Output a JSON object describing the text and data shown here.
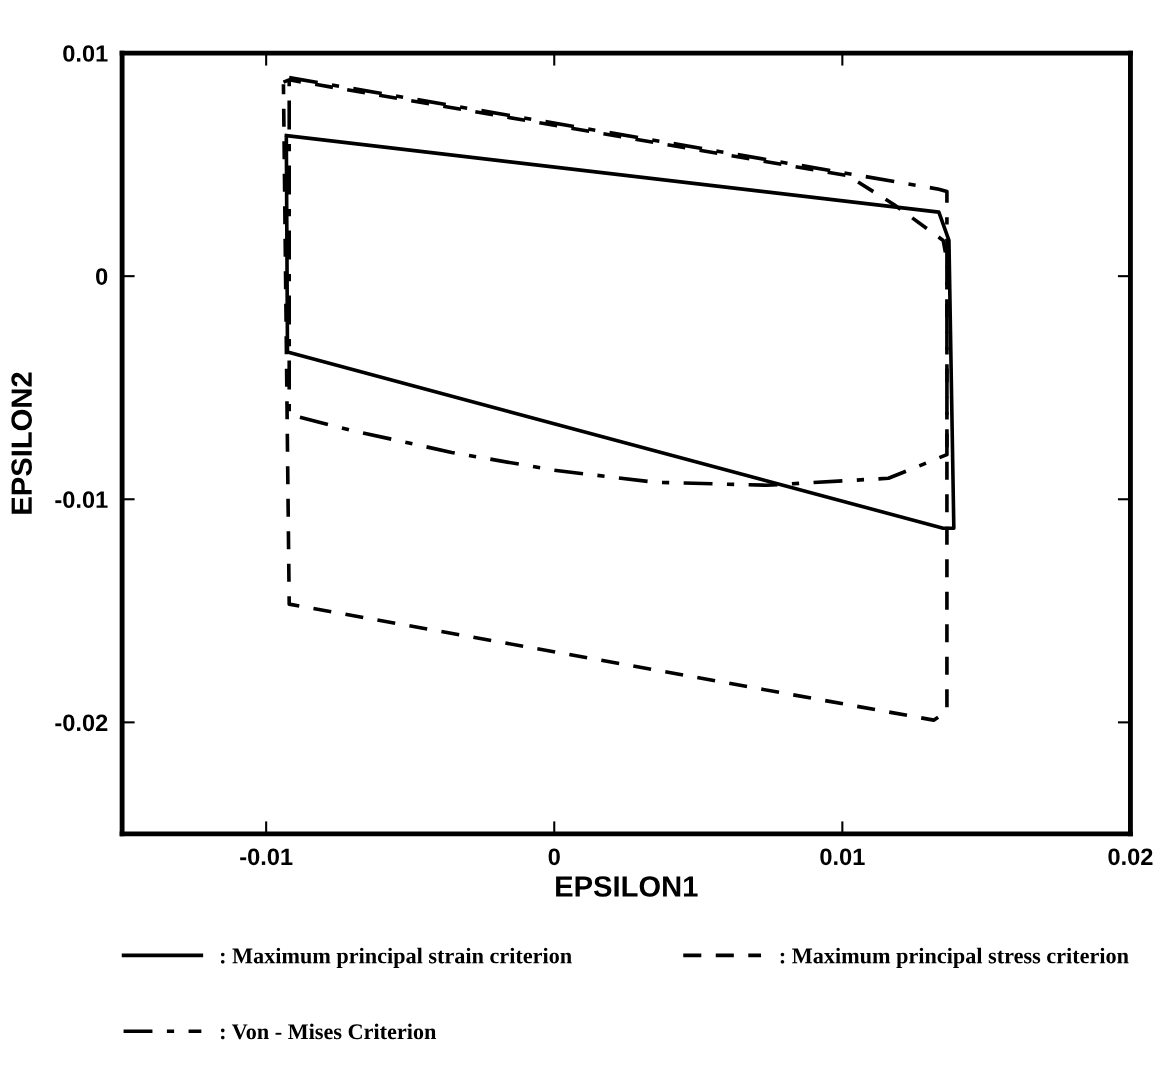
{
  "chart_data": {
    "type": "line",
    "xlabel": "EPSILON1",
    "ylabel": "EPSILON2",
    "xlim": [
      -0.015,
      0.02
    ],
    "ylim": [
      -0.025,
      0.01
    ],
    "xticks": [
      -0.01,
      0,
      0.01,
      0.02
    ],
    "yticks": [
      -0.02,
      -0.01,
      0,
      0.01
    ],
    "grid": false,
    "legend": "bottom",
    "marker": "none",
    "series": [
      {
        "name": ": Maximum principal strain criterion",
        "color": "#000000",
        "line_style": "solid",
        "x": [
          -0.0093,
          0.01335,
          0.0137,
          0.01387,
          0.0135,
          -0.00926,
          -0.0093
        ],
        "values": [
          0.0063,
          0.00287,
          0.0016,
          -0.0113,
          -0.0113,
          -0.0034,
          0.0062
        ]
      },
      {
        "name": ": Maximum principal stress criterion",
        "color": "#000000",
        "line_style": "dashed",
        "x": [
          -0.0094,
          -0.0092,
          0.0102,
          0.0118,
          0.0135,
          0.01363,
          0.01363,
          0.01317,
          -0.0092,
          -0.0094
        ],
        "values": [
          0.0087,
          0.0088,
          0.0045,
          0.0032,
          0.0016,
          0.0007,
          -0.0195,
          -0.0199,
          -0.0147,
          0.0086
        ]
      },
      {
        "name": ": Von - Mises Criterion",
        "color": "#000000",
        "line_style": "dashdot",
        "x": [
          -0.0092,
          0.01335,
          0.01363,
          0.01363,
          0.0116,
          0.00736,
          0.0035,
          0,
          -0.00356,
          -0.00708,
          -0.0092,
          -0.0092
        ],
        "values": [
          0.0089,
          0.0039,
          0.0038,
          -0.008,
          -0.00906,
          -0.00937,
          -0.00924,
          -0.0087,
          -0.0079,
          -0.0069,
          -0.0062,
          0.0088
        ]
      }
    ]
  }
}
